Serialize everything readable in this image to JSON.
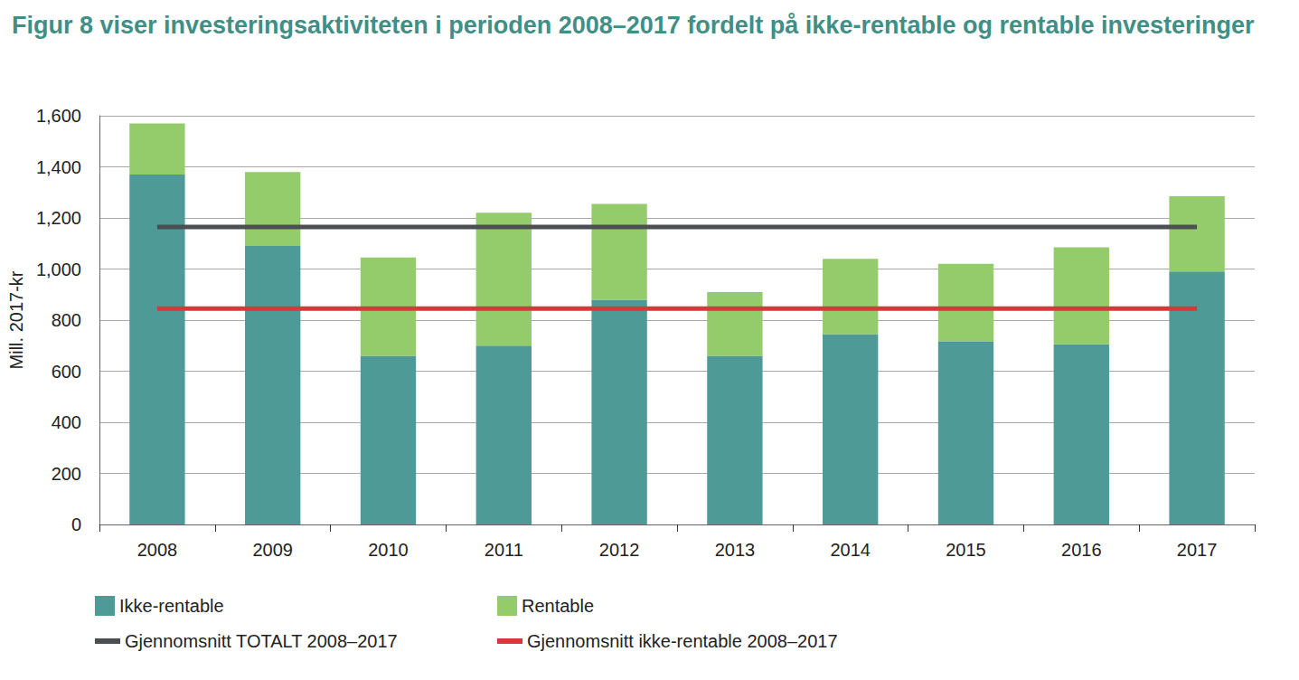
{
  "chart_data": {
    "type": "bar",
    "title": "Figur 8 viser investeringsaktiviteten i perioden 2008–2017 fordelt på ikke-rentable og rentable investeringer",
    "y_label": "Mill. 2017-kr",
    "categories": [
      "2008",
      "2009",
      "2010",
      "2011",
      "2012",
      "2013",
      "2014",
      "2015",
      "2016",
      "2017"
    ],
    "series": [
      {
        "name": "Ikke-rentable",
        "type": "bar",
        "color": "#4d9a96",
        "values": [
          1370,
          1090,
          660,
          700,
          880,
          660,
          745,
          715,
          705,
          990
        ]
      },
      {
        "name": "Rentable",
        "type": "bar",
        "color": "#95cc6b",
        "values": [
          200,
          290,
          385,
          520,
          375,
          250,
          295,
          305,
          380,
          295
        ]
      },
      {
        "name": "Gjennomsnitt TOTALT 2008–2017",
        "type": "line",
        "color": "#4a4f52",
        "line_style": "solid",
        "values": [
          1165,
          1165,
          1165,
          1165,
          1165,
          1165,
          1165,
          1165,
          1165,
          1165
        ]
      },
      {
        "name": "Gjennomsnitt ikke-rentable 2008–2017",
        "type": "line",
        "color": "#d9383a",
        "line_style": "solid",
        "values": [
          845,
          845,
          845,
          845,
          845,
          845,
          845,
          845,
          845,
          845
        ]
      }
    ],
    "stacked": true,
    "ylim": [
      0,
      1600
    ],
    "yticks": [
      0,
      200,
      400,
      600,
      800,
      1000,
      1200,
      1400,
      1600
    ],
    "grid": true,
    "legend": "bottom"
  }
}
